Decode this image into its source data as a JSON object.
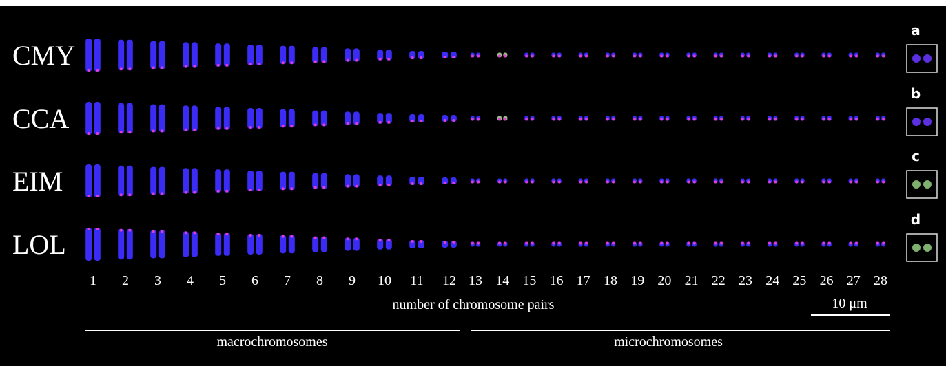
{
  "rows": [
    "CMY",
    "CCA",
    "EIM",
    "LOL"
  ],
  "columns": [
    1,
    2,
    3,
    4,
    5,
    6,
    7,
    8,
    9,
    10,
    11,
    12,
    13,
    14,
    15,
    16,
    17,
    18,
    19,
    20,
    21,
    22,
    23,
    24,
    25,
    26,
    27,
    28
  ],
  "axis_label": "number of chromosome pairs",
  "scale_bar": "10 μm",
  "groups": [
    "macrochromosomes",
    "microchromosomes"
  ],
  "insets": [
    "a",
    "b",
    "c",
    "d"
  ]
}
